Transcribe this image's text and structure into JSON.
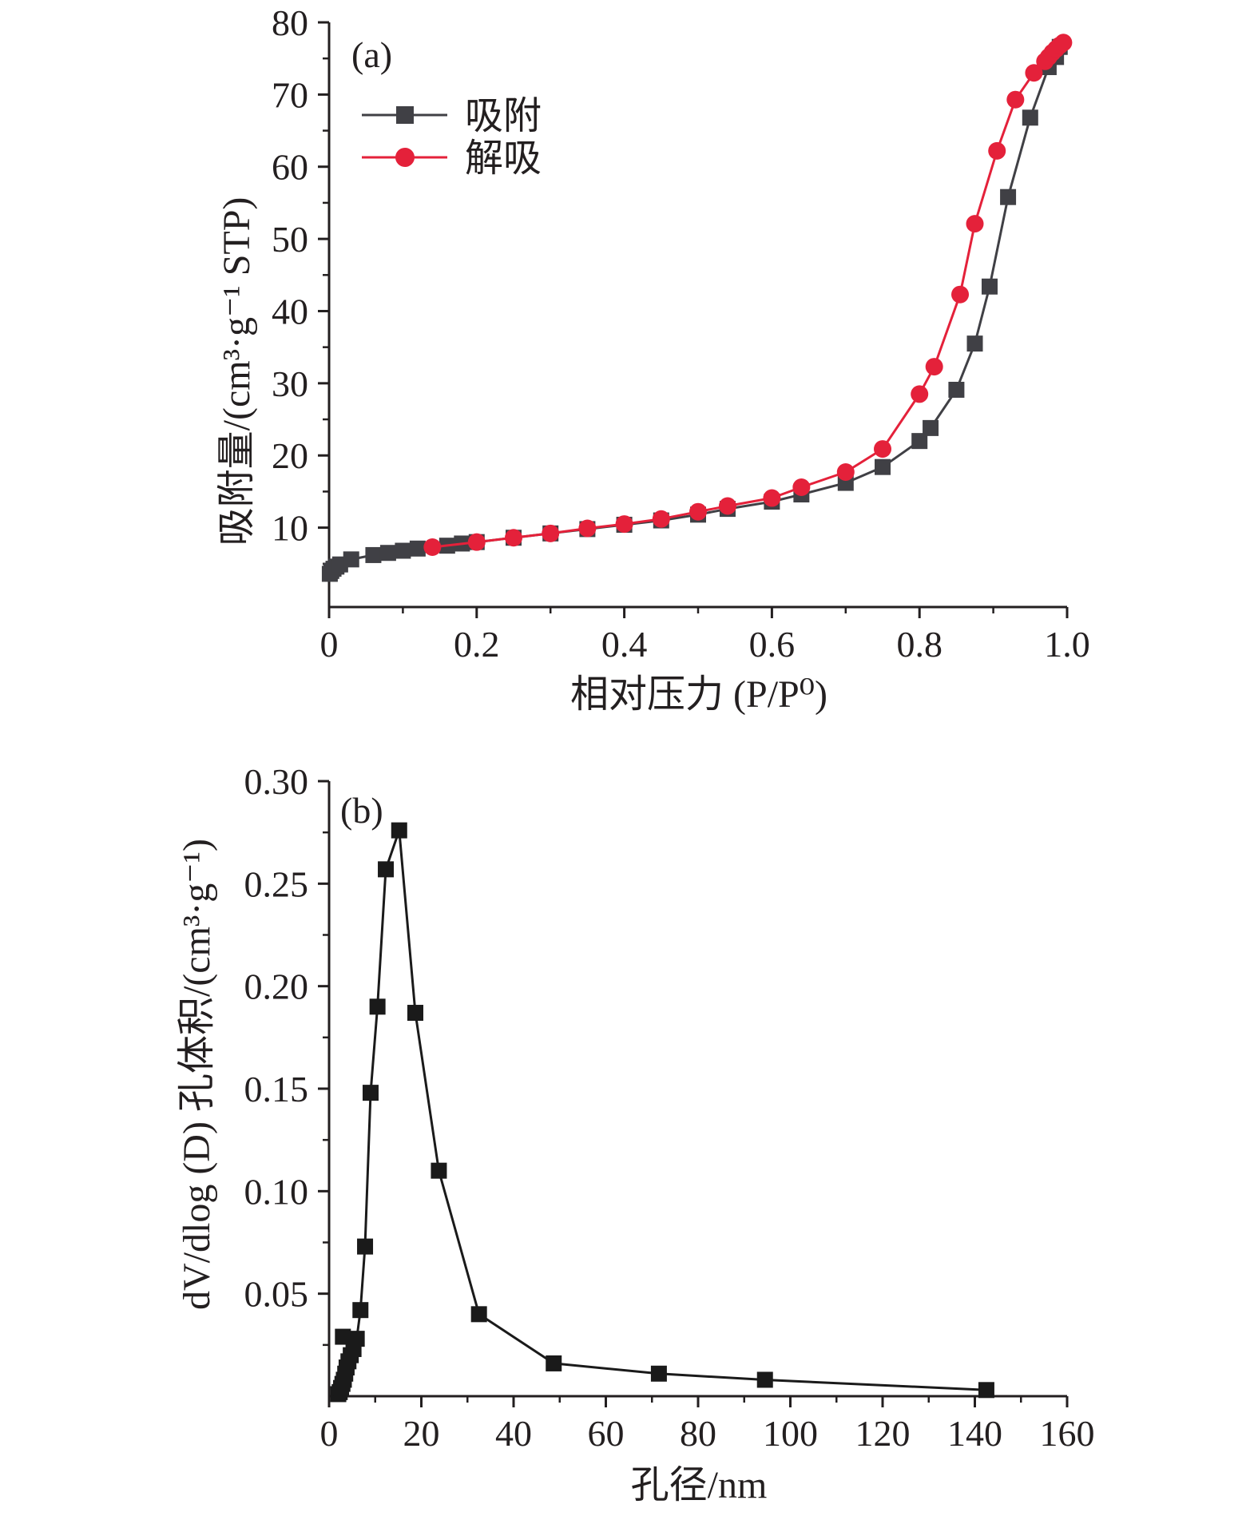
{
  "chart_data": [
    {
      "type": "line",
      "panel_label": "(a)",
      "xlabel": "相对压力 (P/P⁰)",
      "ylabel": "吸附量/(cm³·g⁻¹ STP)",
      "xlim": [
        0,
        1.0
      ],
      "ylim": [
        -1,
        80
      ],
      "xticks": [
        "0",
        "0.2",
        "0.4",
        "0.6",
        "0.8",
        "1.0"
      ],
      "xtick_values": [
        0,
        0.2,
        0.4,
        0.6,
        0.8,
        1.0
      ],
      "yticks": [
        "10",
        "20",
        "30",
        "40",
        "50",
        "60",
        "70",
        "80"
      ],
      "ytick_values": [
        10,
        20,
        30,
        40,
        50,
        60,
        70,
        80
      ],
      "legend_position": "top-left",
      "series": [
        {
          "name": "吸附",
          "color": "#404045",
          "marker": "square",
          "x": [
            0.001,
            0.003,
            0.006,
            0.01,
            0.015,
            0.03,
            0.06,
            0.08,
            0.1,
            0.12,
            0.16,
            0.18,
            0.2,
            0.25,
            0.3,
            0.35,
            0.4,
            0.45,
            0.5,
            0.54,
            0.6,
            0.64,
            0.7,
            0.75,
            0.8,
            0.815,
            0.85,
            0.875,
            0.895,
            0.92,
            0.95,
            0.975,
            0.985,
            0.99
          ],
          "y": [
            3.6,
            4.0,
            4.3,
            4.6,
            4.9,
            5.6,
            6.2,
            6.5,
            6.8,
            7.1,
            7.5,
            7.8,
            8.0,
            8.6,
            9.2,
            9.8,
            10.4,
            11.0,
            11.8,
            12.6,
            13.6,
            14.6,
            16.2,
            18.4,
            22.0,
            23.8,
            29.1,
            35.5,
            43.4,
            55.8,
            66.8,
            73.8,
            75.2,
            76.6
          ]
        },
        {
          "name": "解吸",
          "color": "#e4213a",
          "marker": "circle",
          "x": [
            0.14,
            0.2,
            0.25,
            0.3,
            0.35,
            0.4,
            0.45,
            0.5,
            0.54,
            0.6,
            0.64,
            0.7,
            0.75,
            0.8,
            0.82,
            0.855,
            0.875,
            0.905,
            0.93,
            0.955,
            0.97,
            0.975,
            0.98,
            0.985,
            0.99,
            0.995
          ],
          "y": [
            7.3,
            8.0,
            8.6,
            9.2,
            9.9,
            10.5,
            11.2,
            12.2,
            13.0,
            14.1,
            15.6,
            17.7,
            20.9,
            28.5,
            32.3,
            42.3,
            52.1,
            62.2,
            69.3,
            73.0,
            74.6,
            75.2,
            75.8,
            76.3,
            76.8,
            77.2
          ]
        }
      ]
    },
    {
      "type": "line",
      "panel_label": "(b)",
      "xlabel": "孔径/nm",
      "ylabel": "dV/dlog (D) 孔体积/(cm³·g⁻¹)",
      "xlim": [
        0,
        160
      ],
      "ylim": [
        0,
        0.3
      ],
      "xticks": [
        "0",
        "20",
        "40",
        "60",
        "80",
        "100",
        "120",
        "140",
        "160"
      ],
      "xtick_values": [
        0,
        20,
        40,
        60,
        80,
        100,
        120,
        140,
        160
      ],
      "yticks": [
        "0.05",
        "0.10",
        "0.15",
        "0.20",
        "0.25",
        "0.30"
      ],
      "ytick_values": [
        0.05,
        0.1,
        0.15,
        0.2,
        0.25,
        0.3
      ],
      "series": [
        {
          "color": "#1a1a1a",
          "marker": "square",
          "x": [
            2.0,
            2.3,
            2.6,
            2.9,
            3.2,
            3.5,
            3.8,
            4.2,
            4.7,
            5.3,
            6.0,
            6.8,
            7.8,
            9.0,
            10.5,
            12.3,
            15.2,
            18.7,
            23.8,
            32.5,
            48.7,
            71.5,
            94.5,
            142.5
          ],
          "y": [
            0.001,
            0.002,
            0.004,
            0.006,
            0.008,
            0.011,
            0.014,
            0.017,
            0.02,
            0.023,
            0.028,
            0.042,
            0.073,
            0.148,
            0.19,
            0.257,
            0.276,
            0.187,
            0.11,
            0.04,
            0.016,
            0.011,
            0.008,
            0.003
          ]
        },
        {
          "color": "#1a1a1a",
          "marker": "square",
          "x": [
            3.0
          ],
          "y": [
            0.029
          ]
        }
      ]
    }
  ]
}
